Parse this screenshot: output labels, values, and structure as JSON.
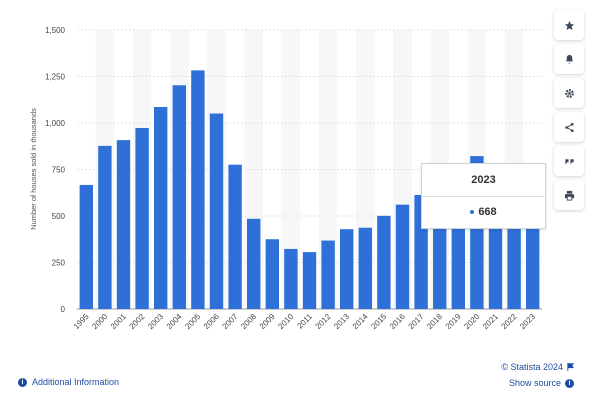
{
  "chart_data": {
    "type": "bar",
    "title": "",
    "xlabel": "",
    "ylabel": "Number of houses sold in thousands",
    "categories": [
      "1995",
      "2000",
      "2001",
      "2002",
      "2003",
      "2004",
      "2005",
      "2006",
      "2007",
      "2008",
      "2009",
      "2010",
      "2011",
      "2012",
      "2013",
      "2014",
      "2015",
      "2016",
      "2017",
      "2018",
      "2019",
      "2020",
      "2021",
      "2022",
      "2023"
    ],
    "values": [
      667,
      877,
      908,
      973,
      1086,
      1203,
      1283,
      1051,
      776,
      485,
      375,
      323,
      306,
      368,
      429,
      437,
      501,
      561,
      613,
      617,
      683,
      822,
      771,
      641,
      668
    ],
    "ylim": [
      0,
      1500
    ],
    "yticks": [
      0,
      250,
      500,
      750,
      1000,
      1250,
      1500
    ],
    "ytick_labels": [
      "0",
      "250",
      "500",
      "750",
      "1,000",
      "1,250",
      "1,500"
    ],
    "grid": true,
    "bar_color": "#2f6fd8"
  },
  "tooltip": {
    "year": "2023",
    "value": "668"
  },
  "footer": {
    "additional_info": "Additional Information",
    "copyright": "© Statista 2024",
    "show_source": "Show source"
  },
  "toolbar": {
    "icons": [
      "star-icon",
      "bell-icon",
      "gear-icon",
      "share-icon",
      "quote-icon",
      "print-icon"
    ]
  }
}
